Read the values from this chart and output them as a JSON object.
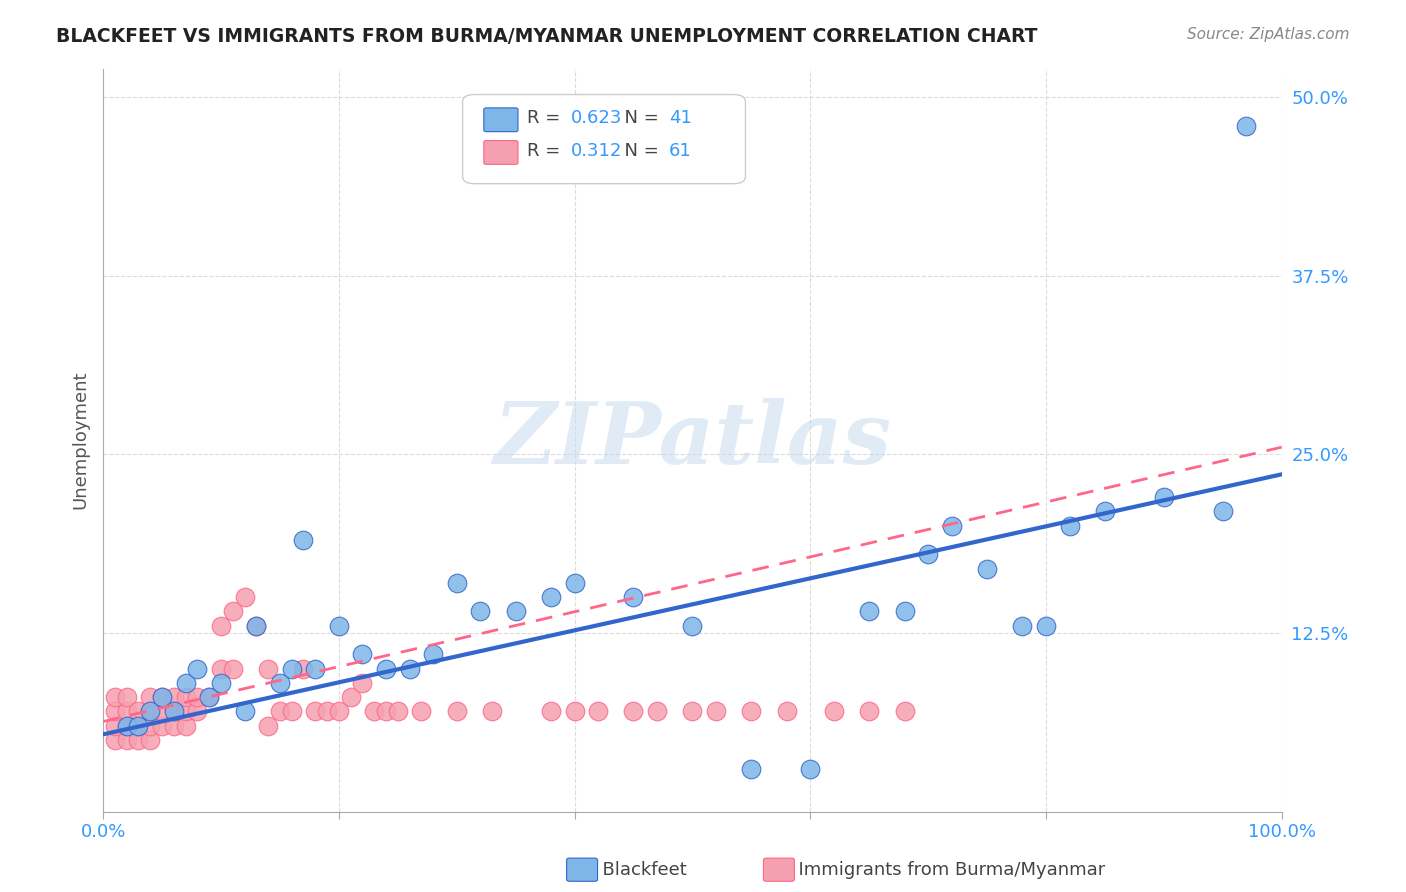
{
  "title": "BLACKFEET VS IMMIGRANTS FROM BURMA/MYANMAR UNEMPLOYMENT CORRELATION CHART",
  "source": "Source: ZipAtlas.com",
  "xlabel": "",
  "ylabel": "Unemployment",
  "watermark": "ZIPatlas",
  "background_color": "#ffffff",
  "grid_color": "#cccccc",
  "blue_R": "0.623",
  "blue_N": "41",
  "pink_R": "0.312",
  "pink_N": "61",
  "blue_color": "#7EB6E8",
  "pink_color": "#F5A0B0",
  "blue_line_color": "#3366CC",
  "pink_line_color": "#FF6688",
  "xmin": 0.0,
  "xmax": 1.0,
  "ymin": 0.0,
  "ymax": 0.52,
  "yticks": [
    0.0,
    0.125,
    0.25,
    0.375,
    0.5
  ],
  "ytick_labels": [
    "",
    "12.5%",
    "25.0%",
    "37.5%",
    "50.0%"
  ],
  "xticks": [
    0.0,
    0.2,
    0.4,
    0.6,
    0.8,
    1.0
  ],
  "xtick_labels": [
    "0.0%",
    "",
    "",
    "",
    "",
    "100.0%"
  ],
  "blue_scatter_x": [
    0.02,
    0.03,
    0.04,
    0.05,
    0.06,
    0.07,
    0.08,
    0.09,
    0.1,
    0.12,
    0.13,
    0.15,
    0.16,
    0.17,
    0.18,
    0.2,
    0.22,
    0.24,
    0.26,
    0.28,
    0.3,
    0.32,
    0.35,
    0.38,
    0.4,
    0.45,
    0.5,
    0.55,
    0.6,
    0.65,
    0.68,
    0.7,
    0.72,
    0.75,
    0.78,
    0.8,
    0.82,
    0.85,
    0.9,
    0.95,
    0.97
  ],
  "blue_scatter_y": [
    0.06,
    0.06,
    0.07,
    0.08,
    0.07,
    0.09,
    0.1,
    0.08,
    0.09,
    0.07,
    0.13,
    0.09,
    0.1,
    0.19,
    0.1,
    0.13,
    0.11,
    0.1,
    0.1,
    0.11,
    0.16,
    0.14,
    0.14,
    0.15,
    0.16,
    0.15,
    0.13,
    0.03,
    0.03,
    0.14,
    0.14,
    0.18,
    0.2,
    0.17,
    0.13,
    0.13,
    0.2,
    0.21,
    0.22,
    0.21,
    0.48
  ],
  "pink_scatter_x": [
    0.01,
    0.01,
    0.01,
    0.01,
    0.02,
    0.02,
    0.02,
    0.02,
    0.03,
    0.03,
    0.03,
    0.04,
    0.04,
    0.04,
    0.04,
    0.05,
    0.05,
    0.05,
    0.06,
    0.06,
    0.06,
    0.07,
    0.07,
    0.07,
    0.08,
    0.08,
    0.09,
    0.1,
    0.1,
    0.11,
    0.11,
    0.12,
    0.13,
    0.14,
    0.14,
    0.15,
    0.16,
    0.17,
    0.18,
    0.19,
    0.2,
    0.21,
    0.22,
    0.23,
    0.24,
    0.25,
    0.27,
    0.3,
    0.33,
    0.38,
    0.4,
    0.42,
    0.45,
    0.47,
    0.5,
    0.52,
    0.55,
    0.58,
    0.62,
    0.65,
    0.68
  ],
  "pink_scatter_y": [
    0.05,
    0.06,
    0.07,
    0.08,
    0.05,
    0.06,
    0.07,
    0.08,
    0.05,
    0.06,
    0.07,
    0.05,
    0.06,
    0.07,
    0.08,
    0.06,
    0.07,
    0.08,
    0.06,
    0.07,
    0.08,
    0.06,
    0.07,
    0.08,
    0.07,
    0.08,
    0.08,
    0.13,
    0.1,
    0.1,
    0.14,
    0.15,
    0.13,
    0.06,
    0.1,
    0.07,
    0.07,
    0.1,
    0.07,
    0.07,
    0.07,
    0.08,
    0.09,
    0.07,
    0.07,
    0.07,
    0.07,
    0.07,
    0.07,
    0.07,
    0.07,
    0.07,
    0.07,
    0.07,
    0.07,
    0.07,
    0.07,
    0.07,
    0.07,
    0.07,
    0.07
  ],
  "blue_trend_x": [
    0.0,
    1.0
  ],
  "blue_trend_y": [
    0.054,
    0.236
  ],
  "pink_trend_x": [
    0.0,
    1.0
  ],
  "pink_trend_y": [
    0.063,
    0.255
  ]
}
